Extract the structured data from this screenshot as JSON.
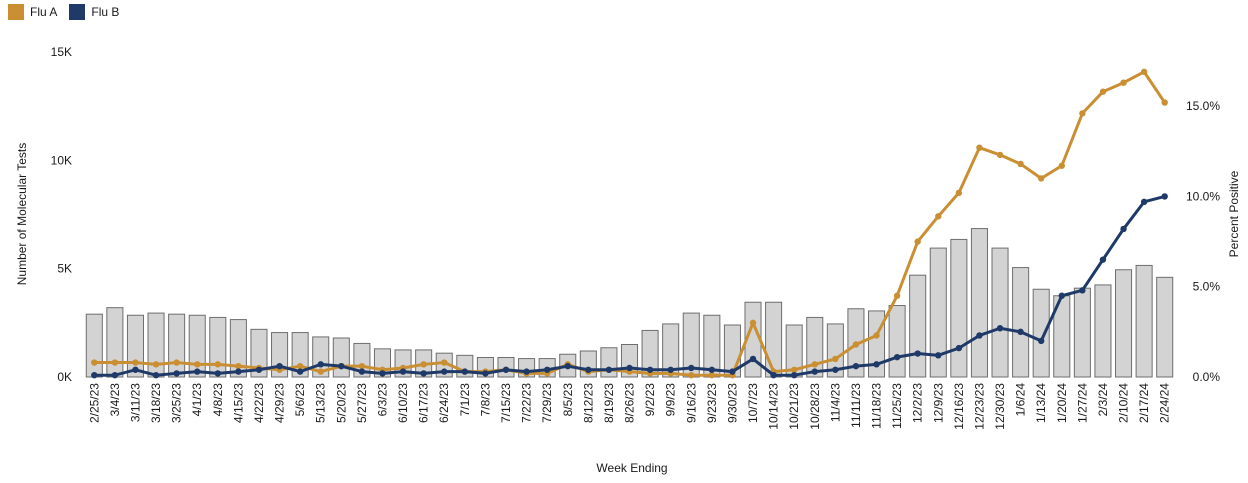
{
  "chart_data": {
    "type": "bar",
    "title": "",
    "xlabel": "Week Ending",
    "ylabel_left": "Number of Molecular Tests",
    "ylabel_right": "Percent Positive",
    "ylim_left": [
      0,
      15000
    ],
    "ylim_right": [
      0,
      18
    ],
    "yticks_left": [
      "0K",
      "5K",
      "10K",
      "15K"
    ],
    "yticks_right": [
      "0.0%",
      "5.0%",
      "10.0%",
      "15.0%"
    ],
    "legend_position": "top-left",
    "grid": false,
    "colors": {
      "bars": "#d3d3d3",
      "bar_outline": "#6e6e6e",
      "flu_a": "#c98f32",
      "flu_b": "#1f3a68"
    },
    "categories": [
      "2/25/23",
      "3/4/23",
      "3/11/23",
      "3/18/23",
      "3/25/23",
      "4/1/23",
      "4/8/23",
      "4/15/23",
      "4/22/23",
      "4/29/23",
      "5/6/23",
      "5/13/23",
      "5/20/23",
      "5/27/23",
      "6/3/23",
      "6/10/23",
      "6/17/23",
      "6/24/23",
      "7/1/23",
      "7/8/23",
      "7/15/23",
      "7/22/23",
      "7/29/23",
      "8/5/23",
      "8/12/23",
      "8/19/23",
      "8/26/23",
      "9/2/23",
      "9/9/23",
      "9/16/23",
      "9/23/23",
      "9/30/23",
      "10/7/23",
      "10/14/23",
      "10/21/23",
      "10/28/23",
      "11/4/23",
      "11/11/23",
      "11/18/23",
      "11/25/23",
      "12/2/23",
      "12/9/23",
      "12/16/23",
      "12/23/23",
      "12/30/23",
      "1/6/24",
      "1/13/24",
      "1/20/24",
      "1/27/24",
      "2/3/24",
      "2/10/24",
      "2/17/24",
      "2/24/24"
    ],
    "series": [
      {
        "name": "Number of Molecular Tests",
        "type": "bar",
        "axis": "left",
        "values": [
          2900,
          3200,
          2850,
          2950,
          2900,
          2850,
          2750,
          2650,
          2200,
          2050,
          2050,
          1850,
          1800,
          1550,
          1300,
          1250,
          1250,
          1100,
          1000,
          900,
          900,
          850,
          850,
          1050,
          1200,
          1350,
          1500,
          2150,
          2450,
          2950,
          2850,
          2400,
          3450,
          3450,
          2400,
          2750,
          2450,
          3150,
          3050,
          3300,
          4700,
          5950,
          6350,
          6850,
          5950,
          5050,
          4050,
          3750,
          4100,
          4250,
          4950,
          5150,
          4600
        ]
      },
      {
        "name": "Flu A",
        "type": "line",
        "axis": "right",
        "values": [
          0.8,
          0.8,
          0.8,
          0.7,
          0.8,
          0.7,
          0.7,
          0.6,
          0.5,
          0.4,
          0.6,
          0.3,
          0.6,
          0.6,
          0.4,
          0.5,
          0.7,
          0.8,
          0.3,
          0.3,
          0.4,
          0.2,
          0.2,
          0.7,
          0.3,
          0.4,
          0.3,
          0.2,
          0.2,
          0.1,
          0.1,
          0.1,
          3.0,
          0.3,
          0.4,
          0.7,
          1.0,
          1.8,
          2.3,
          4.5,
          7.5,
          8.9,
          10.2,
          12.7,
          12.3,
          11.8,
          11.0,
          11.7,
          14.6,
          15.8,
          16.3,
          16.9,
          15.2
        ]
      },
      {
        "name": "Flu B",
        "type": "line",
        "axis": "right",
        "values": [
          0.1,
          0.1,
          0.4,
          0.1,
          0.2,
          0.3,
          0.2,
          0.3,
          0.4,
          0.6,
          0.3,
          0.7,
          0.6,
          0.3,
          0.2,
          0.3,
          0.2,
          0.3,
          0.3,
          0.2,
          0.4,
          0.3,
          0.4,
          0.6,
          0.4,
          0.4,
          0.5,
          0.4,
          0.4,
          0.5,
          0.4,
          0.3,
          1.0,
          0.1,
          0.1,
          0.3,
          0.4,
          0.6,
          0.7,
          1.1,
          1.3,
          1.2,
          1.6,
          2.3,
          2.7,
          2.5,
          2.0,
          4.5,
          4.8,
          6.5,
          8.2,
          9.7,
          10.0
        ]
      }
    ]
  }
}
